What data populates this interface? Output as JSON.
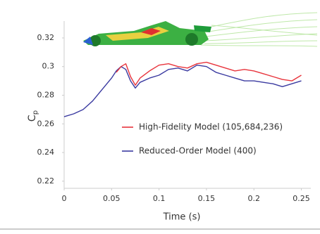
{
  "chart_data": {
    "type": "line",
    "xlabel": "Time (s)",
    "ylabel": "C",
    "ylabel_subscript": "p",
    "x": [
      0,
      0.01,
      0.02,
      0.03,
      0.04,
      0.05,
      0.055,
      0.06,
      0.065,
      0.07,
      0.075,
      0.08,
      0.09,
      0.1,
      0.11,
      0.12,
      0.13,
      0.14,
      0.15,
      0.16,
      0.17,
      0.18,
      0.19,
      0.2,
      0.21,
      0.22,
      0.23,
      0.24,
      0.25
    ],
    "series": [
      {
        "name": "High-Fidelity Model (105,684,236)",
        "color": "#e8343c",
        "values": [
          null,
          null,
          null,
          null,
          null,
          null,
          0.296,
          0.3,
          0.302,
          0.293,
          0.287,
          0.292,
          0.297,
          0.301,
          0.302,
          0.3,
          0.299,
          0.302,
          0.303,
          0.301,
          0.299,
          0.297,
          0.298,
          0.297,
          0.295,
          0.293,
          0.291,
          0.29,
          0.294
        ]
      },
      {
        "name": "Reduced-Order Model (400)",
        "color": "#3a3aa0",
        "values": [
          0.265,
          0.267,
          0.27,
          0.276,
          0.284,
          0.292,
          0.297,
          0.3,
          0.298,
          0.29,
          0.285,
          0.289,
          0.292,
          0.294,
          0.298,
          0.299,
          0.297,
          0.301,
          0.3,
          0.296,
          0.294,
          0.292,
          0.29,
          0.29,
          0.289,
          0.288,
          0.286,
          0.288,
          0.29
        ]
      }
    ],
    "xlim": [
      0,
      0.26
    ],
    "ylim": [
      0.215,
      0.33
    ],
    "xticks": [
      0,
      0.05,
      0.1,
      0.15,
      0.2,
      0.25
    ],
    "yticks": [
      0.22,
      0.24,
      0.26,
      0.28,
      0.3,
      0.32
    ],
    "grid": false,
    "legend": "right"
  }
}
